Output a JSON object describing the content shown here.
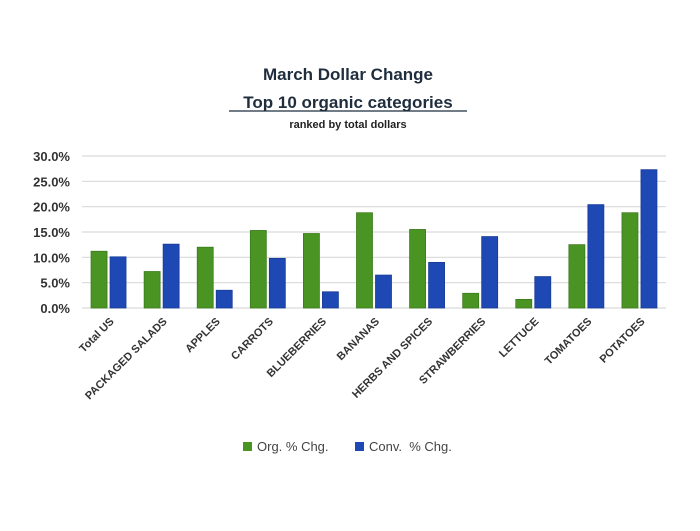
{
  "chart_data": {
    "type": "bar",
    "title": "March Dollar Change",
    "subtitle": "Top 10 organic categories",
    "note": "ranked by total dollars",
    "xlabel": "",
    "ylabel": "",
    "ylim": [
      0,
      30
    ],
    "yticks": [
      "0.0%",
      "5.0%",
      "10.0%",
      "15.0%",
      "20.0%",
      "25.0%",
      "30.0%"
    ],
    "grid": true,
    "legend_position": "bottom",
    "categories": [
      "Total US",
      "PACKAGED SALADS",
      "APPLES",
      "CARROTS",
      "BLUEBERRIES",
      "BANANAS",
      "HERBS AND SPICES",
      "STRAWBERRIES",
      "LETTUCE",
      "TOMATOES",
      "POTATOES"
    ],
    "series": [
      {
        "name": "Org. % Chg.",
        "color": "#4a9424",
        "values": [
          11.2,
          7.2,
          12.0,
          15.3,
          14.7,
          18.8,
          15.5,
          2.9,
          1.7,
          12.5,
          18.8
        ]
      },
      {
        "name": "Conv.  % Chg.",
        "color": "#1e48b4",
        "values": [
          10.1,
          12.6,
          3.5,
          9.8,
          3.2,
          6.5,
          9.0,
          14.1,
          6.2,
          20.4,
          27.3
        ]
      }
    ]
  }
}
